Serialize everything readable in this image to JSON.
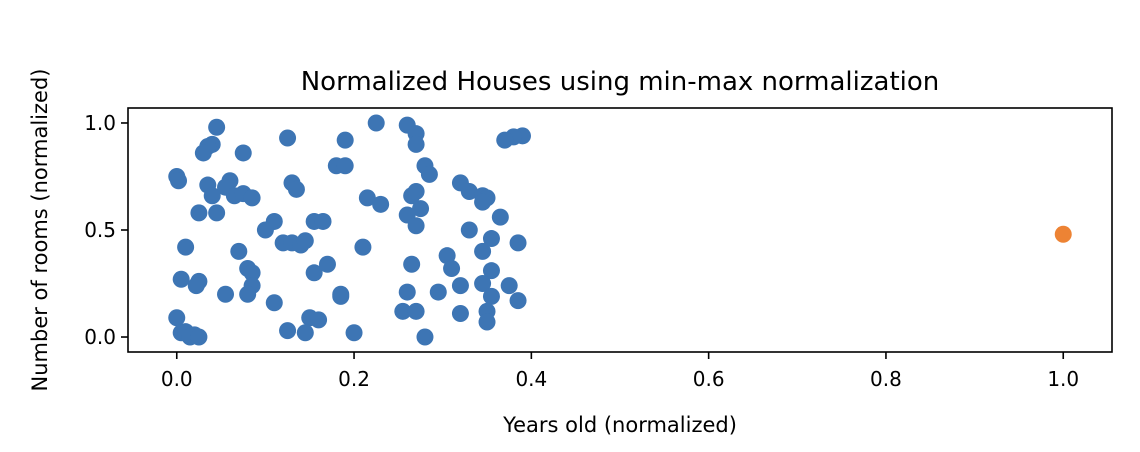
{
  "chart_data": {
    "type": "scatter",
    "title": "Normalized Houses using min-max normalization",
    "xlabel": "Years old (normalized)",
    "ylabel": "Number of rooms (normalized)",
    "xlim": [
      -0.055,
      1.055
    ],
    "ylim": [
      -0.07,
      1.07
    ],
    "x_ticks": [
      0.0,
      0.2,
      0.4,
      0.6,
      0.8,
      1.0
    ],
    "x_tick_labels": [
      "0.0",
      "0.2",
      "0.4",
      "0.6",
      "0.8",
      "1.0"
    ],
    "y_ticks": [
      0.0,
      0.5,
      1.0
    ],
    "y_tick_labels": [
      "0.0",
      "0.5",
      "1.0"
    ],
    "grid": false,
    "series": [
      {
        "color": "#3d75b4",
        "points": [
          [
            0.045,
            0.98
          ],
          [
            0.225,
            1.0
          ],
          [
            0.26,
            0.99
          ],
          [
            0.27,
            0.95
          ],
          [
            0.39,
            0.94
          ],
          [
            0.38,
            0.935
          ],
          [
            0.37,
            0.92
          ],
          [
            0.125,
            0.93
          ],
          [
            0.19,
            0.92
          ],
          [
            0.04,
            0.9
          ],
          [
            0.035,
            0.89
          ],
          [
            0.03,
            0.86
          ],
          [
            0.075,
            0.86
          ],
          [
            0.27,
            0.9
          ],
          [
            0.18,
            0.8
          ],
          [
            0.19,
            0.8
          ],
          [
            0.28,
            0.8
          ],
          [
            0.285,
            0.76
          ],
          [
            0.0,
            0.75
          ],
          [
            0.002,
            0.73
          ],
          [
            0.06,
            0.73
          ],
          [
            0.035,
            0.71
          ],
          [
            0.055,
            0.7
          ],
          [
            0.13,
            0.72
          ],
          [
            0.135,
            0.69
          ],
          [
            0.32,
            0.72
          ],
          [
            0.33,
            0.68
          ],
          [
            0.345,
            0.66
          ],
          [
            0.35,
            0.65
          ],
          [
            0.345,
            0.63
          ],
          [
            0.04,
            0.66
          ],
          [
            0.065,
            0.66
          ],
          [
            0.075,
            0.67
          ],
          [
            0.085,
            0.65
          ],
          [
            0.265,
            0.66
          ],
          [
            0.27,
            0.68
          ],
          [
            0.215,
            0.65
          ],
          [
            0.23,
            0.62
          ],
          [
            0.275,
            0.6
          ],
          [
            0.26,
            0.57
          ],
          [
            0.025,
            0.58
          ],
          [
            0.045,
            0.58
          ],
          [
            0.11,
            0.54
          ],
          [
            0.155,
            0.54
          ],
          [
            0.165,
            0.54
          ],
          [
            0.27,
            0.52
          ],
          [
            0.365,
            0.56
          ],
          [
            0.33,
            0.5
          ],
          [
            0.355,
            0.46
          ],
          [
            0.385,
            0.44
          ],
          [
            0.1,
            0.5
          ],
          [
            0.12,
            0.44
          ],
          [
            0.13,
            0.44
          ],
          [
            0.14,
            0.43
          ],
          [
            0.145,
            0.45
          ],
          [
            0.21,
            0.42
          ],
          [
            0.01,
            0.42
          ],
          [
            0.07,
            0.4
          ],
          [
            0.345,
            0.4
          ],
          [
            0.305,
            0.38
          ],
          [
            0.265,
            0.34
          ],
          [
            0.17,
            0.34
          ],
          [
            0.08,
            0.32
          ],
          [
            0.085,
            0.3
          ],
          [
            0.155,
            0.3
          ],
          [
            0.31,
            0.32
          ],
          [
            0.355,
            0.31
          ],
          [
            0.005,
            0.27
          ],
          [
            0.025,
            0.26
          ],
          [
            0.022,
            0.24
          ],
          [
            0.085,
            0.24
          ],
          [
            0.32,
            0.24
          ],
          [
            0.345,
            0.25
          ],
          [
            0.375,
            0.24
          ],
          [
            0.385,
            0.17
          ],
          [
            0.055,
            0.2
          ],
          [
            0.08,
            0.2
          ],
          [
            0.185,
            0.2
          ],
          [
            0.185,
            0.19
          ],
          [
            0.26,
            0.21
          ],
          [
            0.295,
            0.21
          ],
          [
            0.355,
            0.19
          ],
          [
            0.11,
            0.16
          ],
          [
            0.255,
            0.12
          ],
          [
            0.27,
            0.12
          ],
          [
            0.32,
            0.11
          ],
          [
            0.35,
            0.12
          ],
          [
            0.35,
            0.07
          ],
          [
            0.15,
            0.09
          ],
          [
            0.16,
            0.08
          ],
          [
            0.0,
            0.09
          ],
          [
            0.005,
            0.02
          ],
          [
            0.01,
            0.025
          ],
          [
            0.02,
            0.01
          ],
          [
            0.015,
            0.0
          ],
          [
            0.025,
            0.0
          ],
          [
            0.125,
            0.03
          ],
          [
            0.145,
            0.02
          ],
          [
            0.2,
            0.02
          ],
          [
            0.28,
            0.0
          ]
        ]
      },
      {
        "color": "#ed8334",
        "points": [
          [
            1.0,
            0.48
          ]
        ]
      }
    ]
  }
}
